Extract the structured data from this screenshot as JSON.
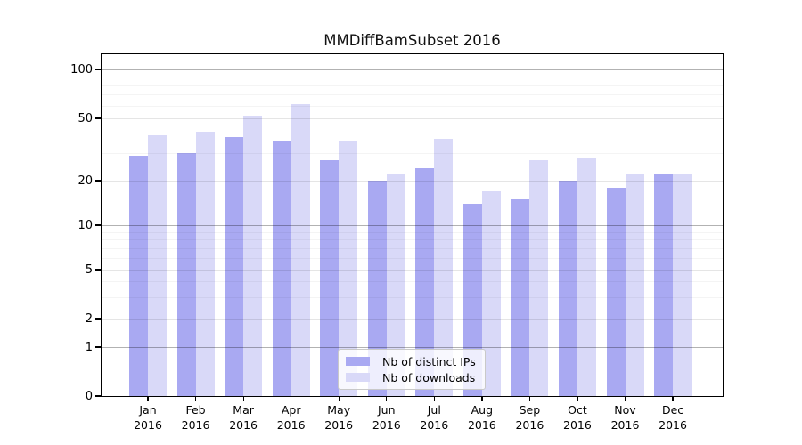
{
  "title": "MMDiffBamSubset 2016",
  "legend": {
    "items": [
      {
        "label": "Nb of distinct IPs",
        "color": "#a9a9f2"
      },
      {
        "label": "Nb of downloads",
        "color": "#d9d9f8"
      }
    ]
  },
  "y_axis": {
    "tick_labels": [
      "0",
      "1",
      "2",
      "5",
      "10",
      "20",
      "50",
      "100"
    ]
  },
  "x_axis": {
    "months": [
      "Jan",
      "Feb",
      "Mar",
      "Apr",
      "May",
      "Jun",
      "Jul",
      "Aug",
      "Sep",
      "Oct",
      "Nov",
      "Dec"
    ],
    "year": "2016"
  },
  "chart_data": {
    "type": "bar",
    "title": "MMDiffBamSubset 2016",
    "categories": [
      "Jan 2016",
      "Feb 2016",
      "Mar 2016",
      "Apr 2016",
      "May 2016",
      "Jun 2016",
      "Jul 2016",
      "Aug 2016",
      "Sep 2016",
      "Oct 2016",
      "Nov 2016",
      "Dec 2016"
    ],
    "series": [
      {
        "name": "Nb of distinct IPs",
        "color": "#a9a9f2",
        "values": [
          29,
          30,
          38,
          36,
          27,
          20,
          24,
          14,
          15,
          20,
          18,
          22
        ]
      },
      {
        "name": "Nb of downloads",
        "color": "#d9d9f8",
        "values": [
          39,
          41,
          52,
          61,
          36,
          22,
          37,
          17,
          27,
          28,
          22,
          22
        ]
      }
    ],
    "yscale": "log",
    "yticks": [
      0,
      1,
      2,
      5,
      10,
      20,
      50,
      100
    ],
    "ylim": [
      0,
      125
    ],
    "grid": true,
    "gridlines_major": [
      1,
      10,
      100
    ],
    "gridlines_mid": [
      2,
      5,
      20,
      50
    ],
    "gridlines_minor": [
      3,
      4,
      6,
      7,
      8,
      9,
      30,
      40,
      60,
      70,
      80,
      90
    ],
    "legend_position": "bottom-center"
  }
}
